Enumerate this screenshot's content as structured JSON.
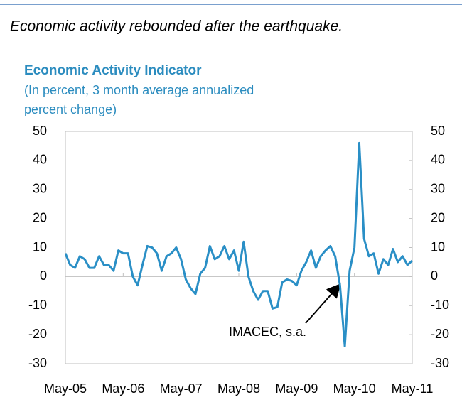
{
  "heading": "Economic activity rebounded after the earthquake.",
  "chart_data": {
    "type": "line",
    "title": "Economic Activity Indicator",
    "subtitle": [
      "(In percent, 3 month average annualized",
      "percent change)"
    ],
    "categories": [
      "May-05",
      null,
      null,
      null,
      null,
      null,
      null,
      null,
      null,
      null,
      null,
      null,
      "May-06",
      null,
      null,
      null,
      null,
      null,
      null,
      null,
      null,
      null,
      null,
      null,
      "May-07",
      null,
      null,
      null,
      null,
      null,
      null,
      null,
      null,
      null,
      null,
      null,
      "May-08",
      null,
      null,
      null,
      null,
      null,
      null,
      null,
      null,
      null,
      null,
      null,
      "May-09",
      null,
      null,
      null,
      null,
      null,
      null,
      null,
      null,
      null,
      null,
      null,
      "May-10",
      null,
      null,
      null,
      null,
      null,
      null,
      null,
      null,
      null,
      null,
      null,
      "May-11"
    ],
    "series": [
      {
        "name": "IMACEC, s.a.",
        "color": "#2a8fc6",
        "values": [
          8,
          4,
          3,
          7,
          6,
          3,
          3,
          7,
          4,
          4,
          2,
          9,
          8,
          8,
          0,
          -3,
          4,
          10.5,
          10,
          8,
          2,
          7,
          8,
          10,
          6,
          -1,
          -4,
          -6,
          1,
          3,
          10.5,
          6,
          7,
          10.5,
          6,
          9,
          2,
          12,
          0,
          -5,
          -8,
          -5,
          -5,
          -11,
          -10.5,
          -2,
          -1,
          -1.5,
          -3,
          2,
          5,
          9,
          3,
          7,
          9,
          10.5,
          7,
          -3,
          -24,
          2,
          10,
          46,
          13,
          7,
          8,
          1,
          6,
          4,
          9.5,
          5,
          7,
          4,
          5.5
        ]
      }
    ],
    "ylim": [
      -30,
      50
    ],
    "yticks": [
      -30,
      -20,
      -10,
      0,
      10,
      20,
      30,
      40,
      50
    ],
    "y2lim": [
      -30,
      50
    ],
    "y2ticks": [
      -30,
      -20,
      -10,
      0,
      10,
      20,
      30,
      40,
      50
    ]
  }
}
